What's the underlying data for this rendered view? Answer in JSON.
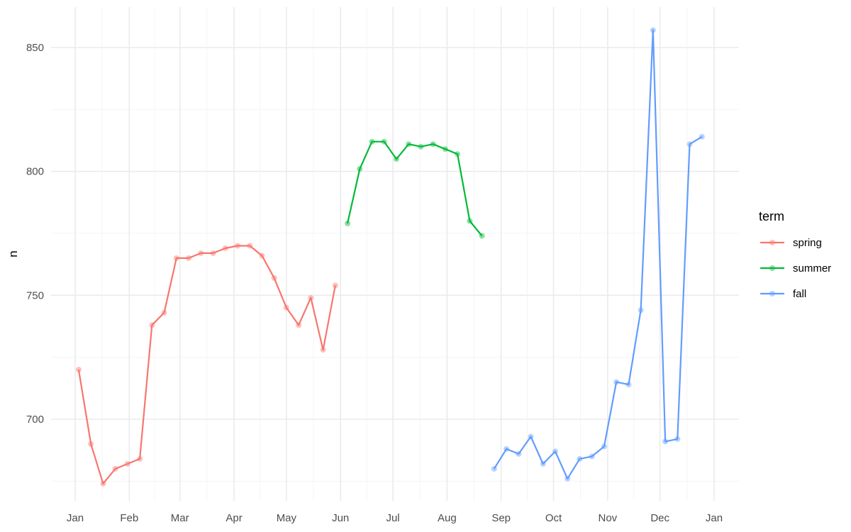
{
  "chart_data": {
    "type": "line",
    "title": "",
    "xlabel": "",
    "ylabel": "n",
    "x_ticks": [
      "Jan",
      "Feb",
      "Mar",
      "Apr",
      "May",
      "Jun",
      "Jul",
      "Aug",
      "Sep",
      "Oct",
      "Nov",
      "Dec",
      "Jan"
    ],
    "x_tick_dates": [
      "2000-01-01",
      "2000-02-01",
      "2000-03-01",
      "2000-04-01",
      "2000-05-01",
      "2000-06-01",
      "2000-07-01",
      "2000-08-01",
      "2000-09-01",
      "2000-10-01",
      "2000-11-01",
      "2000-12-01",
      "2001-01-01"
    ],
    "y_ticks": [
      700,
      750,
      800,
      850
    ],
    "ylim": [
      666,
      865
    ],
    "xlim": [
      "2000-12-25",
      "2001-01-14"
    ],
    "grid": true,
    "markers": true,
    "legend": {
      "title": "term",
      "position": "right"
    },
    "series": [
      {
        "name": "spring",
        "color": "#F8766D",
        "points": [
          {
            "x": "2000-01-03",
            "y": 720
          },
          {
            "x": "2000-01-10",
            "y": 690
          },
          {
            "x": "2000-01-17",
            "y": 674
          },
          {
            "x": "2000-01-24",
            "y": 680
          },
          {
            "x": "2000-01-31",
            "y": 682
          },
          {
            "x": "2000-02-07",
            "y": 684
          },
          {
            "x": "2000-02-14",
            "y": 738
          },
          {
            "x": "2000-02-21",
            "y": 743
          },
          {
            "x": "2000-02-28",
            "y": 765
          },
          {
            "x": "2000-03-06",
            "y": 765
          },
          {
            "x": "2000-03-13",
            "y": 767
          },
          {
            "x": "2000-03-20",
            "y": 767
          },
          {
            "x": "2000-03-27",
            "y": 769
          },
          {
            "x": "2000-04-03",
            "y": 770
          },
          {
            "x": "2000-04-10",
            "y": 770
          },
          {
            "x": "2000-04-17",
            "y": 766
          },
          {
            "x": "2000-04-24",
            "y": 757
          },
          {
            "x": "2000-05-01",
            "y": 745
          },
          {
            "x": "2000-05-08",
            "y": 738
          },
          {
            "x": "2000-05-15",
            "y": 749
          },
          {
            "x": "2000-05-22",
            "y": 728
          },
          {
            "x": "2000-05-29",
            "y": 754
          }
        ]
      },
      {
        "name": "summer",
        "color": "#00BA38",
        "points": [
          {
            "x": "2000-06-05",
            "y": 779
          },
          {
            "x": "2000-06-12",
            "y": 801
          },
          {
            "x": "2000-06-19",
            "y": 812
          },
          {
            "x": "2000-06-26",
            "y": 812
          },
          {
            "x": "2000-07-03",
            "y": 805
          },
          {
            "x": "2000-07-10",
            "y": 811
          },
          {
            "x": "2000-07-17",
            "y": 810
          },
          {
            "x": "2000-07-24",
            "y": 811
          },
          {
            "x": "2000-07-31",
            "y": 809
          },
          {
            "x": "2000-08-07",
            "y": 807
          },
          {
            "x": "2000-08-14",
            "y": 780
          },
          {
            "x": "2000-08-21",
            "y": 774
          }
        ]
      },
      {
        "name": "fall",
        "color": "#619CFF",
        "points": [
          {
            "x": "2000-08-28",
            "y": 680
          },
          {
            "x": "2000-09-04",
            "y": 688
          },
          {
            "x": "2000-09-11",
            "y": 686
          },
          {
            "x": "2000-09-18",
            "y": 693
          },
          {
            "x": "2000-09-25",
            "y": 682
          },
          {
            "x": "2000-10-02",
            "y": 687
          },
          {
            "x": "2000-10-09",
            "y": 676
          },
          {
            "x": "2000-10-16",
            "y": 684
          },
          {
            "x": "2000-10-23",
            "y": 685
          },
          {
            "x": "2000-10-30",
            "y": 689
          },
          {
            "x": "2000-11-06",
            "y": 715
          },
          {
            "x": "2000-11-13",
            "y": 714
          },
          {
            "x": "2000-11-20",
            "y": 744
          },
          {
            "x": "2000-11-27",
            "y": 857
          },
          {
            "x": "2000-12-04",
            "y": 691
          },
          {
            "x": "2000-12-11",
            "y": 692
          },
          {
            "x": "2000-12-18",
            "y": 811
          },
          {
            "x": "2000-12-25",
            "y": 814
          }
        ]
      }
    ]
  }
}
